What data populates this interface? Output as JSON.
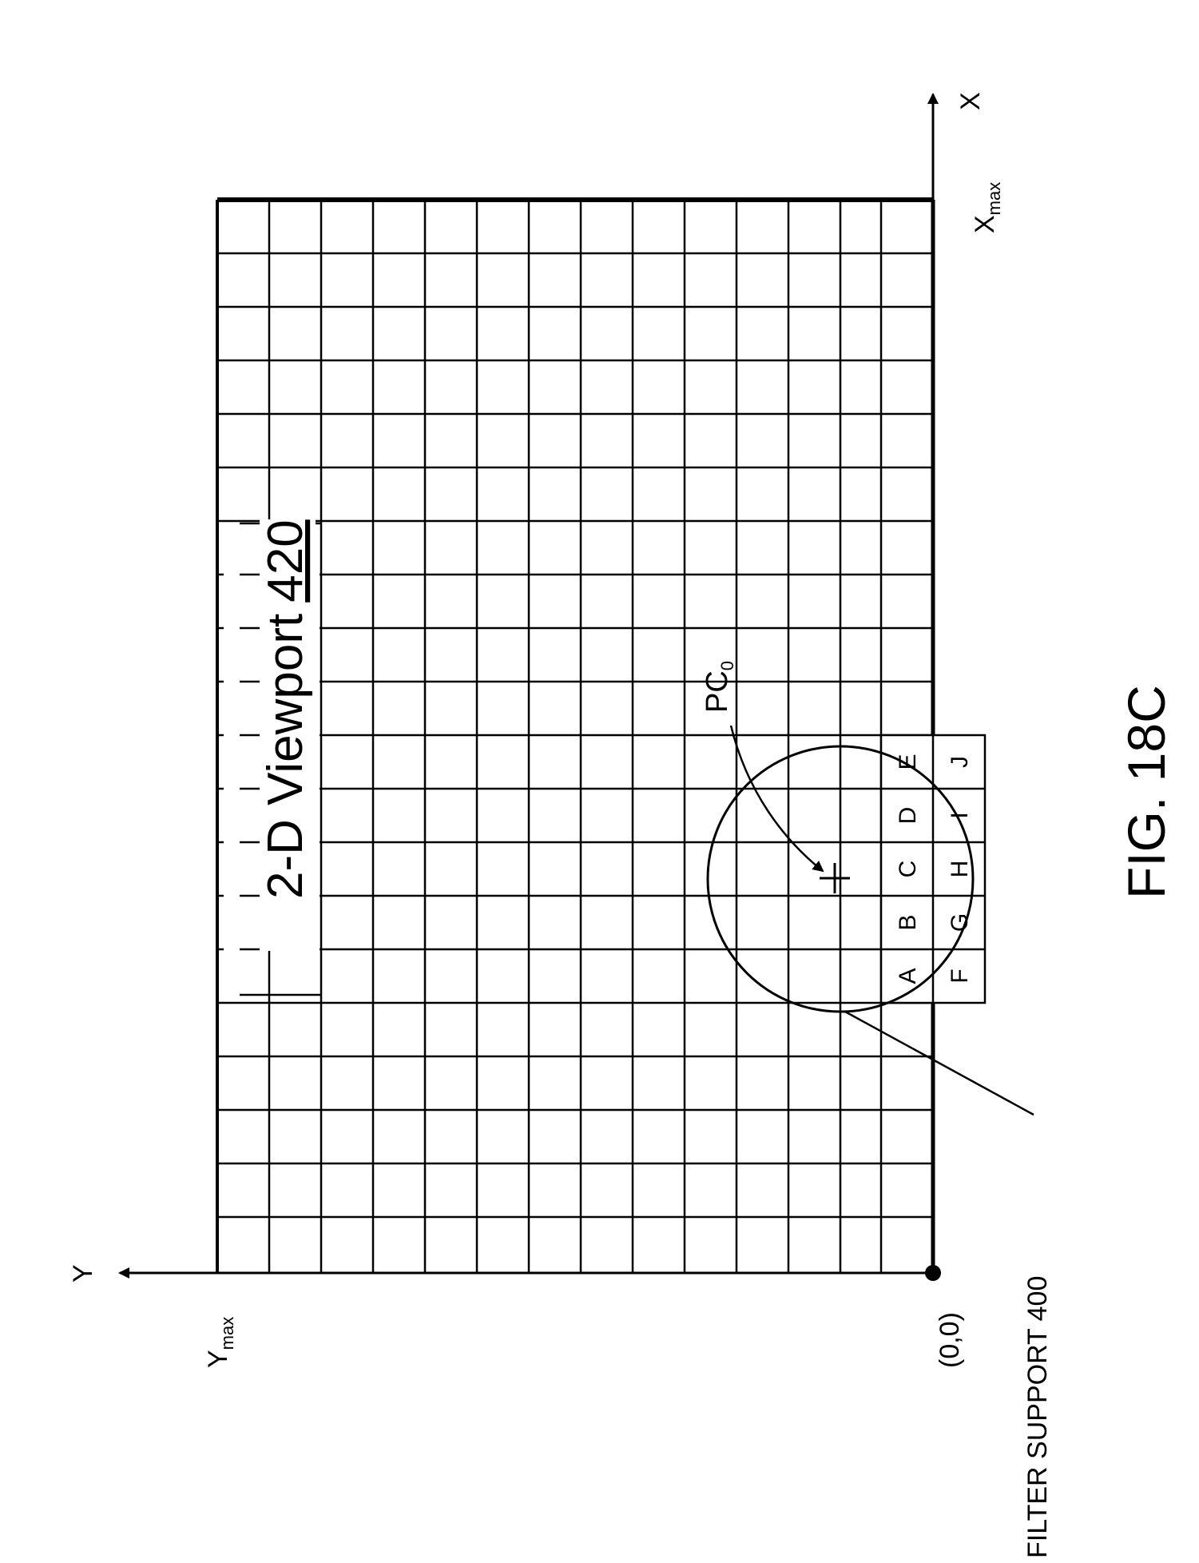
{
  "figure": {
    "title": "FIG. 18C",
    "viewport_label": "2-D Viewport",
    "viewport_ref": "420",
    "filter_support_label": "FILTER SUPPORT 400",
    "pc_label": "PC",
    "pc_subscript": "0"
  },
  "axes": {
    "x_label": "X",
    "y_label": "Y",
    "xmax_label": "X",
    "xmax_sub": "max",
    "ymax_label": "Y",
    "ymax_sub": "max",
    "origin_label": "(0,0)"
  },
  "sample_cells": {
    "row1": [
      "A",
      "B",
      "C",
      "D",
      "E"
    ],
    "row2": [
      "F",
      "G",
      "H",
      "I",
      "J"
    ]
  },
  "colors": {
    "line": "#000000",
    "background": "#ffffff"
  }
}
